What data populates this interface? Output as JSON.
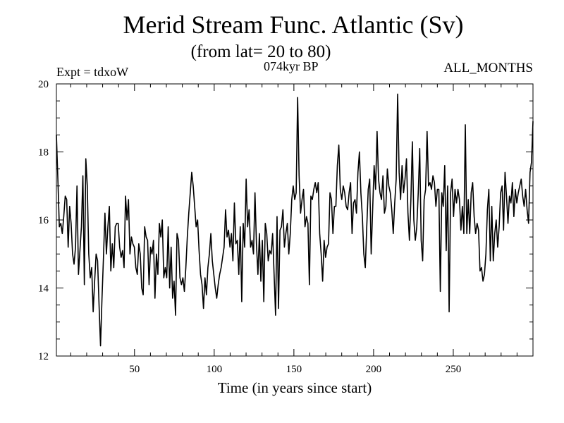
{
  "chart_data": {
    "type": "line",
    "title": "Merid Stream Func. Atlantic (Sv)",
    "subtitle": "(from lat= 20 to 80)",
    "period_label": "074kyr BP",
    "expt_label": "Expt = tdxoW",
    "months_label": "ALL_MONTHS",
    "xlabel": "Time (in years since start)",
    "ylabel": "",
    "xlim": [
      1,
      300
    ],
    "ylim": [
      12,
      20
    ],
    "xticks": [
      50,
      100,
      150,
      200,
      250
    ],
    "yticks": [
      12,
      14,
      16,
      18,
      20
    ],
    "xtick_labels": [
      "50",
      "100",
      "150",
      "200",
      "250"
    ],
    "ytick_labels": [
      "12",
      "14",
      "16",
      "18",
      "20"
    ],
    "grid": false,
    "series": [
      {
        "values": [
          18.5,
          17.2,
          15.8,
          15.9,
          15.6,
          16.1,
          16.7,
          16.6,
          15.2,
          16.4,
          15.9,
          15.0,
          14.7,
          15.2,
          17.0,
          14.4,
          15.1,
          15.8,
          17.3,
          14.1,
          17.8,
          17.0,
          15.0,
          14.3,
          14.6,
          13.3,
          14.2,
          15.0,
          14.8,
          13.5,
          12.3,
          13.7,
          14.9,
          16.2,
          15.0,
          15.8,
          16.4,
          14.5,
          15.3,
          14.6,
          15.8,
          15.9,
          15.9,
          15.2,
          14.9,
          15.1,
          14.6,
          16.7,
          16.0,
          16.6,
          15.0,
          15.5,
          15.3,
          15.2,
          14.6,
          14.4,
          15.3,
          15.0,
          14.0,
          13.8,
          15.8,
          15.5,
          15.4,
          14.1,
          15.2,
          15.0,
          15.4,
          13.7,
          15.0,
          14.4,
          15.9,
          15.5,
          16.0,
          14.3,
          14.6,
          14.3,
          15.8,
          14.0,
          15.2,
          13.7,
          14.2,
          13.2,
          15.6,
          15.4,
          14.3,
          14.1,
          14.3,
          13.9,
          14.6,
          15.5,
          16.2,
          16.8,
          17.4,
          17.0,
          16.4,
          15.8,
          16.0,
          15.1,
          14.4,
          14.1,
          13.4,
          14.3,
          13.8,
          14.6,
          15.0,
          15.6,
          14.8,
          14.4,
          14.0,
          13.7,
          14.1,
          14.4,
          14.6,
          14.9,
          15.2,
          16.3,
          15.5,
          15.7,
          15.2,
          15.6,
          14.8,
          16.5,
          15.3,
          15.4,
          14.4,
          15.8,
          13.6,
          15.9,
          15.2,
          17.2,
          15.8,
          16.3,
          15.2,
          15.4,
          15.0,
          16.8,
          15.3,
          14.4,
          15.6,
          14.2,
          15.4,
          13.6,
          15.9,
          15.6,
          14.8,
          15.1,
          15.0,
          15.6,
          14.4,
          13.2,
          16.1,
          13.4,
          15.7,
          15.8,
          16.3,
          15.2,
          15.6,
          15.9,
          15.0,
          15.6,
          16.6,
          17.0,
          16.6,
          16.8,
          19.6,
          17.3,
          16.2,
          16.6,
          16.9,
          15.8,
          16.1,
          15.9,
          14.1,
          16.7,
          16.6,
          16.9,
          17.1,
          16.8,
          17.1,
          15.6,
          15.0,
          14.2,
          15.4,
          14.9,
          15.2,
          15.3,
          16.8,
          16.6,
          15.6,
          16.4,
          16.4,
          17.6,
          18.2,
          16.9,
          16.6,
          17.0,
          16.8,
          16.4,
          16.3,
          16.8,
          17.1,
          15.6,
          16.5,
          16.6,
          16.2,
          17.4,
          18.0,
          16.8,
          16.1,
          15.0,
          14.6,
          15.8,
          16.9,
          17.2,
          15.0,
          16.3,
          17.6,
          16.9,
          18.6,
          17.2,
          16.8,
          16.6,
          17.3,
          16.2,
          16.4,
          17.5,
          17.0,
          16.8,
          16.3,
          15.6,
          16.5,
          17.2,
          19.7,
          17.4,
          16.6,
          17.6,
          16.8,
          17.2,
          17.8,
          16.2,
          15.4,
          16.6,
          18.3,
          16.0,
          15.4,
          15.8,
          16.8,
          18.1,
          15.4,
          14.8,
          16.6,
          16.9,
          18.6,
          17.0,
          17.1,
          16.9,
          17.3,
          17.1,
          16.4,
          16.9,
          16.9,
          13.9,
          16.8,
          16.4,
          17.6,
          15.1,
          17.0,
          13.3,
          16.8,
          17.2,
          16.1,
          16.9,
          16.5,
          16.9,
          16.6,
          15.7,
          16.4,
          15.6,
          18.8,
          15.6,
          16.6,
          15.6,
          16.8,
          17.1,
          16.1,
          15.6,
          15.9,
          15.7,
          14.5,
          14.6,
          14.2,
          14.4,
          15.0,
          16.3,
          16.9,
          14.8,
          16.4,
          14.8,
          15.6,
          16.0,
          15.2,
          15.8,
          16.8,
          17.0,
          15.7,
          17.4,
          16.7,
          15.9,
          16.7,
          16.5,
          17.1,
          16.1,
          16.9,
          16.5,
          16.8,
          17.0,
          17.2,
          16.7,
          16.4,
          16.9,
          16.3,
          15.9,
          17.4,
          17.7,
          18.9
        ]
      }
    ]
  }
}
